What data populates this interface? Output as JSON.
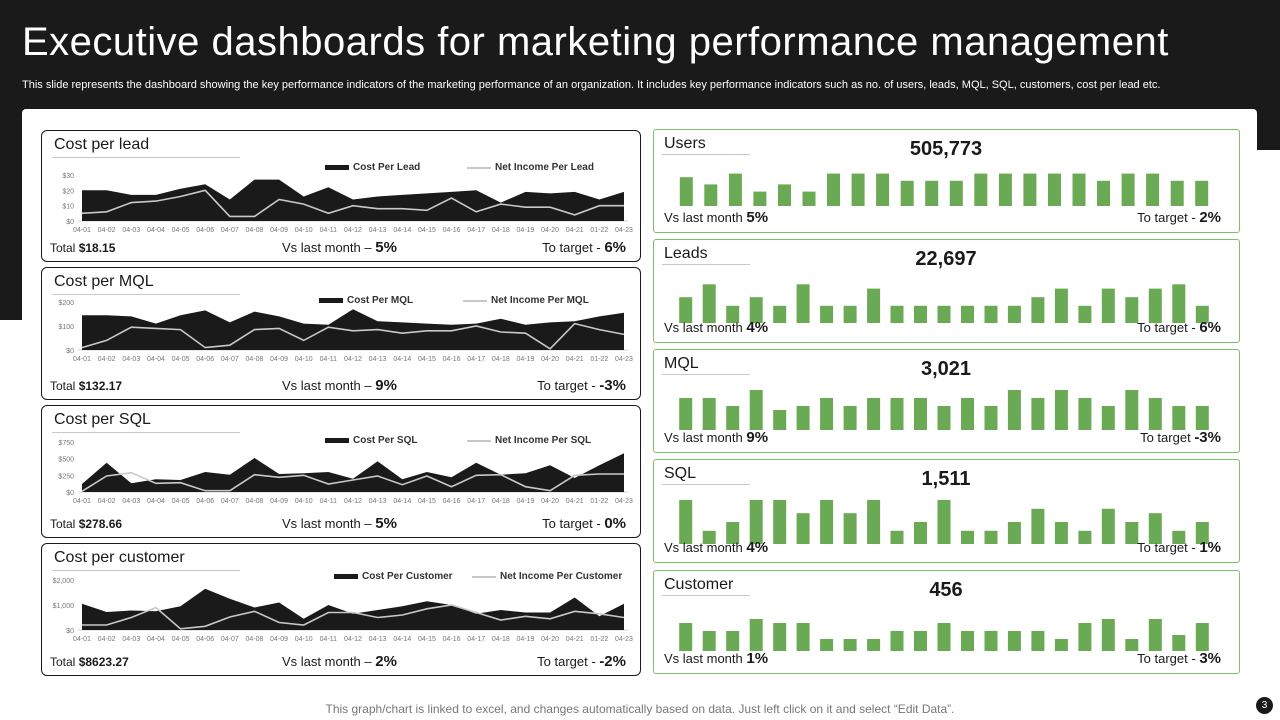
{
  "page": {
    "title": "Executive dashboards for marketing performance management",
    "subtitle": "This slide represents the dashboard showing the key performance indicators of the marketing performance of an organization. It includes key performance indicators such as no. of users, leads, MQL, SQL, customers, cost per lead etc.",
    "footnote": "This graph/chart is linked to excel, and changes automatically based on data. Just left click on it and select “Edit Data”.",
    "page_number": "3",
    "colors": {
      "background": "#1a1a1a",
      "accent_green": "#6aaa55",
      "line_light": "#c8c8c8",
      "kpi_border": "#7fbf6a"
    }
  },
  "cost_panels": [
    {
      "title": "Cost per lead",
      "total_label": "Total",
      "total_value": "$18.15",
      "vs_label": "Vs last month –",
      "vs_value": "5%",
      "target_label": "To target -",
      "target_value": "6%"
    },
    {
      "title": "Cost per MQL",
      "total_label": "Total",
      "total_value": "$132.17",
      "vs_label": "Vs last month –",
      "vs_value": "9%",
      "target_label": "To target -",
      "target_value": "-3%"
    },
    {
      "title": "Cost per SQL",
      "total_label": "Total",
      "total_value": "$278.66",
      "vs_label": "Vs last month –",
      "vs_value": "5%",
      "target_label": "To target -",
      "target_value": "0%"
    },
    {
      "title": "Cost per customer",
      "total_label": "Total",
      "total_value": "$8623.27",
      "vs_label": "Vs last month –",
      "vs_value": "2%",
      "target_label": "To target -",
      "target_value": "-2%"
    }
  ],
  "kpi_panels": [
    {
      "title": "Users",
      "value": "505,773",
      "vs_label": "Vs last month",
      "vs_value": "5%",
      "target_label": "To target -",
      "target_value": "2%"
    },
    {
      "title": "Leads",
      "value": "22,697",
      "vs_label": "Vs last month",
      "vs_value": "4%",
      "target_label": "To target -",
      "target_value": "6%"
    },
    {
      "title": "MQL",
      "value": "3,021",
      "vs_label": "Vs last month",
      "vs_value": "9%",
      "target_label": "To target",
      "target_value": "-3%"
    },
    {
      "title": "SQL",
      "value": "1,511",
      "vs_label": "Vs last month",
      "vs_value": "4%",
      "target_label": "To target -",
      "target_value": "1%"
    },
    {
      "title": "Customer",
      "value": "456",
      "vs_label": "Vs last month",
      "vs_value": "1%",
      "target_label": "To target -",
      "target_value": "3%"
    }
  ],
  "chart_data": [
    {
      "type": "area",
      "categories": [
        "04-01",
        "04-02",
        "04-03",
        "04-04",
        "04-05",
        "04-06",
        "04-07",
        "04-08",
        "04-09",
        "04-10",
        "04-11",
        "04-12",
        "04-13",
        "04-14",
        "04-15",
        "04-16",
        "04-17",
        "04-18",
        "04-19",
        "04-20",
        "04-21",
        "01-22",
        "04-23"
      ],
      "y_ticks": [
        "$0",
        "$10",
        "$20",
        "$30"
      ],
      "ylim": [
        0,
        30
      ],
      "series": [
        {
          "name": "Cost Per Lead",
          "style": "area",
          "values": [
            20,
            20,
            17,
            17,
            21,
            24,
            14,
            27,
            27,
            16,
            22,
            14,
            16,
            17,
            18,
            19,
            20,
            12,
            19,
            18,
            19,
            14,
            19
          ]
        },
        {
          "name": "Net Income Per Lead",
          "style": "line",
          "values": [
            5,
            6,
            12,
            13,
            16,
            20,
            3,
            3,
            14,
            11,
            5,
            10,
            8,
            8,
            7,
            15,
            6,
            11,
            9,
            9,
            4,
            10,
            10
          ]
        }
      ]
    },
    {
      "type": "area",
      "categories": [
        "04-01",
        "04-02",
        "04-03",
        "04-04",
        "04-05",
        "04-06",
        "04-07",
        "04-08",
        "04-09",
        "04-10",
        "04-11",
        "04-12",
        "04-13",
        "04-14",
        "04-15",
        "04-16",
        "04-17",
        "04-18",
        "04-19",
        "04-20",
        "04-21",
        "01-22",
        "04-23"
      ],
      "y_ticks": [
        "$0",
        "$100",
        "$200"
      ],
      "ylim": [
        0,
        200
      ],
      "series": [
        {
          "name": "Cost Per MQL",
          "style": "area",
          "values": [
            145,
            145,
            140,
            110,
            145,
            165,
            115,
            160,
            140,
            110,
            105,
            170,
            120,
            115,
            110,
            105,
            110,
            130,
            105,
            115,
            120,
            140,
            155
          ]
        },
        {
          "name": "Net Income Per MQL",
          "style": "line",
          "values": [
            10,
            40,
            95,
            90,
            85,
            10,
            20,
            85,
            90,
            40,
            95,
            80,
            85,
            70,
            80,
            80,
            100,
            75,
            70,
            5,
            110,
            85,
            65
          ]
        }
      ]
    },
    {
      "type": "area",
      "categories": [
        "04-01",
        "04-02",
        "04-03",
        "04-04",
        "04-05",
        "04-06",
        "04-07",
        "04-08",
        "04-09",
        "04-10",
        "04-11",
        "04-12",
        "04-13",
        "04-14",
        "04-15",
        "04-16",
        "04-17",
        "04-18",
        "04-19",
        "04-20",
        "04-21",
        "01-22",
        "04-23"
      ],
      "y_ticks": [
        "$0",
        "$250",
        "$500",
        "$750"
      ],
      "ylim": [
        0,
        750
      ],
      "series": [
        {
          "name": "Cost Per SQL",
          "style": "area",
          "values": [
            120,
            440,
            130,
            190,
            180,
            300,
            260,
            510,
            270,
            280,
            300,
            200,
            460,
            190,
            300,
            220,
            440,
            260,
            280,
            400,
            210,
            400,
            580
          ]
        },
        {
          "name": "Net Income Per SQL",
          "style": "line",
          "values": [
            10,
            240,
            290,
            130,
            140,
            20,
            20,
            260,
            220,
            250,
            120,
            180,
            240,
            110,
            240,
            80,
            250,
            260,
            80,
            20,
            250,
            270,
            270
          ]
        }
      ]
    },
    {
      "type": "area",
      "categories": [
        "04-01",
        "04-02",
        "04-03",
        "04-04",
        "04-05",
        "04-06",
        "04-07",
        "04-08",
        "04-09",
        "04-10",
        "04-11",
        "04-12",
        "04-13",
        "04-14",
        "04-15",
        "04-16",
        "04-17",
        "04-18",
        "04-19",
        "04-20",
        "04-21",
        "01-22",
        "04-23"
      ],
      "y_ticks": [
        "$0",
        "$1,000",
        "$2,000"
      ],
      "ylim": [
        0,
        2000
      ],
      "series": [
        {
          "name": "Cost Per Customer",
          "style": "area",
          "values": [
            1050,
            720,
            780,
            750,
            950,
            1650,
            1250,
            900,
            1100,
            450,
            1000,
            650,
            800,
            950,
            1150,
            1000,
            650,
            800,
            700,
            700,
            1300,
            550,
            1050
          ]
        },
        {
          "name": "Net Income Per Customer",
          "style": "line",
          "values": [
            200,
            200,
            500,
            900,
            50,
            150,
            520,
            750,
            300,
            200,
            700,
            700,
            500,
            600,
            850,
            1000,
            700,
            400,
            550,
            450,
            750,
            650,
            500
          ]
        }
      ]
    },
    {
      "type": "bar",
      "title": "Users",
      "values": [
        8,
        6,
        9,
        4,
        6,
        4,
        9,
        9,
        9,
        7,
        7,
        7,
        9,
        9,
        9,
        9,
        9,
        7,
        9,
        9,
        7,
        7
      ]
    },
    {
      "type": "bar",
      "title": "Leads",
      "values": [
        6,
        9,
        4,
        6,
        4,
        9,
        4,
        4,
        8,
        4,
        4,
        4,
        4,
        4,
        4,
        6,
        8,
        4,
        8,
        6,
        8,
        9,
        4
      ]
    },
    {
      "type": "bar",
      "title": "MQL",
      "values": [
        8,
        8,
        6,
        10,
        5,
        6,
        8,
        6,
        8,
        8,
        8,
        6,
        8,
        6,
        10,
        8,
        10,
        8,
        6,
        10,
        8,
        6,
        6
      ]
    },
    {
      "type": "bar",
      "title": "SQL",
      "values": [
        10,
        3,
        5,
        10,
        10,
        7,
        10,
        7,
        10,
        3,
        5,
        10,
        3,
        3,
        5,
        8,
        5,
        3,
        8,
        5,
        7,
        3,
        5
      ]
    },
    {
      "type": "bar",
      "title": "Customer",
      "values": [
        7,
        5,
        5,
        8,
        7,
        7,
        3,
        3,
        3,
        5,
        5,
        7,
        5,
        5,
        5,
        5,
        3,
        7,
        8,
        3,
        8,
        4,
        7
      ]
    }
  ]
}
